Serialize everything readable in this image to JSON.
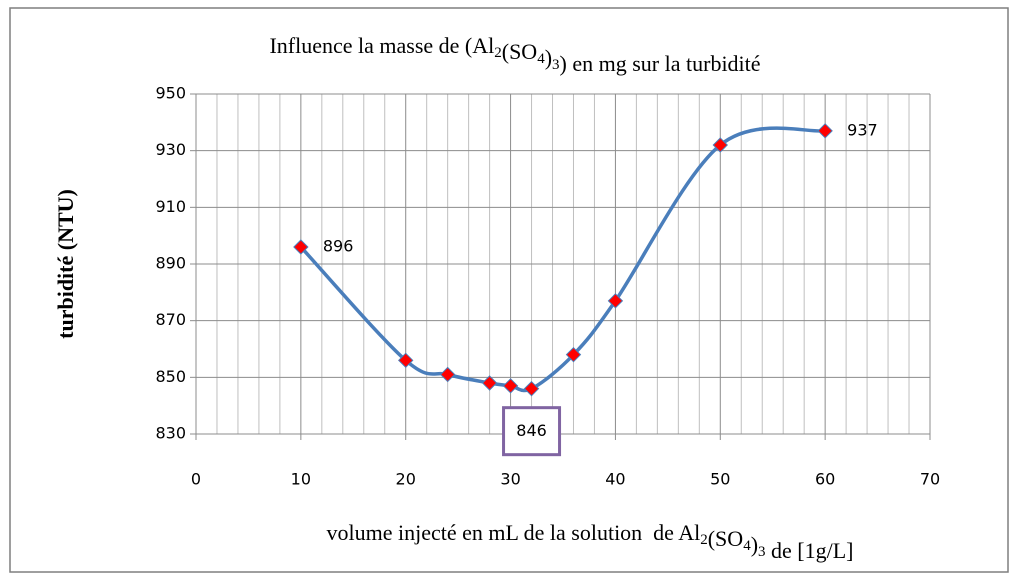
{
  "chart_data": {
    "type": "line",
    "title": "Influence la masse de (Al2(SO4)3)  en mg sur la turbidité",
    "x_label": "volume injecté en mL de la solution  de Al2(SO4)3  de [1g/L]",
    "y_label": "turbidité (NTU)",
    "x": [
      10,
      20,
      24,
      28,
      30,
      32,
      36,
      40,
      50,
      60
    ],
    "series": [
      {
        "name": "turbidité",
        "color": "#4a7ebb",
        "marker_color": "#ff0000",
        "values": [
          896,
          856,
          851,
          848,
          847,
          846,
          858,
          877,
          932,
          937
        ],
        "value_labels": [
          "896",
          null,
          null,
          null,
          null,
          "846",
          null,
          null,
          null,
          "937"
        ]
      }
    ],
    "xlim": [
      0,
      70
    ],
    "xticks": [
      0,
      10,
      20,
      30,
      40,
      50,
      60,
      70
    ],
    "ylim": [
      830,
      950
    ],
    "yticks": [
      830,
      850,
      870,
      890,
      910,
      930,
      950
    ],
    "grid": true,
    "x_minor_divisions": 5,
    "smooth": true,
    "legend": false
  }
}
